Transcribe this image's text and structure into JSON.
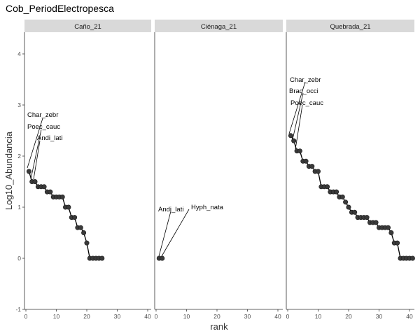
{
  "chart_data": {
    "type": "line",
    "title": "Cob_PeriodElectropesca",
    "xlabel": "rank",
    "ylabel": "Log10_Abundancia",
    "xlim": [
      0,
      41
    ],
    "ylim": [
      -1,
      4.4
    ],
    "x_ticks": [
      0,
      10,
      20,
      30,
      40
    ],
    "y_ticks": [
      -1,
      0,
      1,
      2,
      3,
      4
    ],
    "panels": [
      {
        "name": "Caño_21",
        "values": [
          1.7,
          1.5,
          1.5,
          1.4,
          1.4,
          1.4,
          1.3,
          1.3,
          1.2,
          1.2,
          1.2,
          1.2,
          1.0,
          1.0,
          0.8,
          0.8,
          0.6,
          0.6,
          0.5,
          0.3,
          0.0,
          0.0,
          0.0,
          0.0,
          0.0
        ],
        "labels": [
          {
            "text": "Char_zebr",
            "rank": 1
          },
          {
            "text": "Poec_cauc",
            "rank": 2
          },
          {
            "text": "Andi_lati",
            "rank": 3
          }
        ]
      },
      {
        "name": "Ciénaga_21",
        "values": [
          0.0,
          0.0
        ],
        "labels": [
          {
            "text": "Andi_lati",
            "rank": 1
          },
          {
            "text": "Hyph_nata",
            "rank": 2
          }
        ]
      },
      {
        "name": "Quebrada_21",
        "values": [
          2.4,
          2.3,
          2.1,
          2.1,
          1.9,
          1.9,
          1.8,
          1.8,
          1.7,
          1.7,
          1.4,
          1.4,
          1.4,
          1.3,
          1.3,
          1.3,
          1.2,
          1.2,
          1.1,
          1.0,
          0.9,
          0.9,
          0.8,
          0.8,
          0.8,
          0.8,
          0.7,
          0.7,
          0.7,
          0.6,
          0.6,
          0.6,
          0.6,
          0.5,
          0.3,
          0.3,
          0.0,
          0.0,
          0.0,
          0.0,
          0.0
        ],
        "labels": [
          {
            "text": "Char_zebr",
            "rank": 1
          },
          {
            "text": "Brac_occi",
            "rank": 2
          },
          {
            "text": "Poec_cauc",
            "rank": 3
          }
        ]
      }
    ]
  }
}
